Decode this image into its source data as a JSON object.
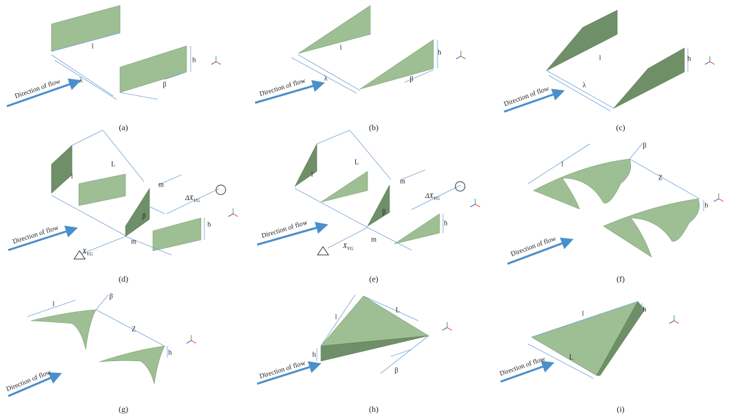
{
  "panels": [
    {
      "caption": "(a)",
      "flow": "Direction of flow",
      "labels": [
        "l",
        "h",
        "λ",
        "β"
      ]
    },
    {
      "caption": "(b)",
      "flow": "Direction of flow",
      "labels": [
        "l",
        "h",
        "λ",
        "β"
      ]
    },
    {
      "caption": "(c)",
      "flow": "Direction of flow",
      "labels": [
        "l",
        "h",
        "λ"
      ]
    },
    {
      "caption": "(d)",
      "flow": "Direction of flow",
      "labels": [
        "l",
        "L",
        "m",
        "β",
        "h",
        "m"
      ],
      "dx": {
        "main": "ΔX",
        "sub": "VG"
      },
      "x": {
        "main": "X",
        "sub": "VG"
      }
    },
    {
      "caption": "(e)",
      "flow": "Direction of flow",
      "labels": [
        "l",
        "L",
        "m",
        "β",
        "h",
        "m"
      ],
      "dx": {
        "main": "ΔX",
        "sub": "VG"
      },
      "x": {
        "main": "X",
        "sub": "VG"
      }
    },
    {
      "caption": "(f)",
      "flow": "Direction of flow",
      "labels": [
        "l",
        "β",
        "Z",
        "h"
      ]
    },
    {
      "caption": "(g)",
      "flow": "Direction of flow",
      "labels": [
        "l",
        "β",
        "Z",
        "h"
      ]
    },
    {
      "caption": "(h)",
      "flow": "Direction of flow",
      "labels": [
        "l",
        "L",
        "h",
        "β"
      ]
    },
    {
      "caption": "(i)",
      "flow": "Direction of flow",
      "labels": [
        "l",
        "h",
        "L"
      ]
    }
  ]
}
